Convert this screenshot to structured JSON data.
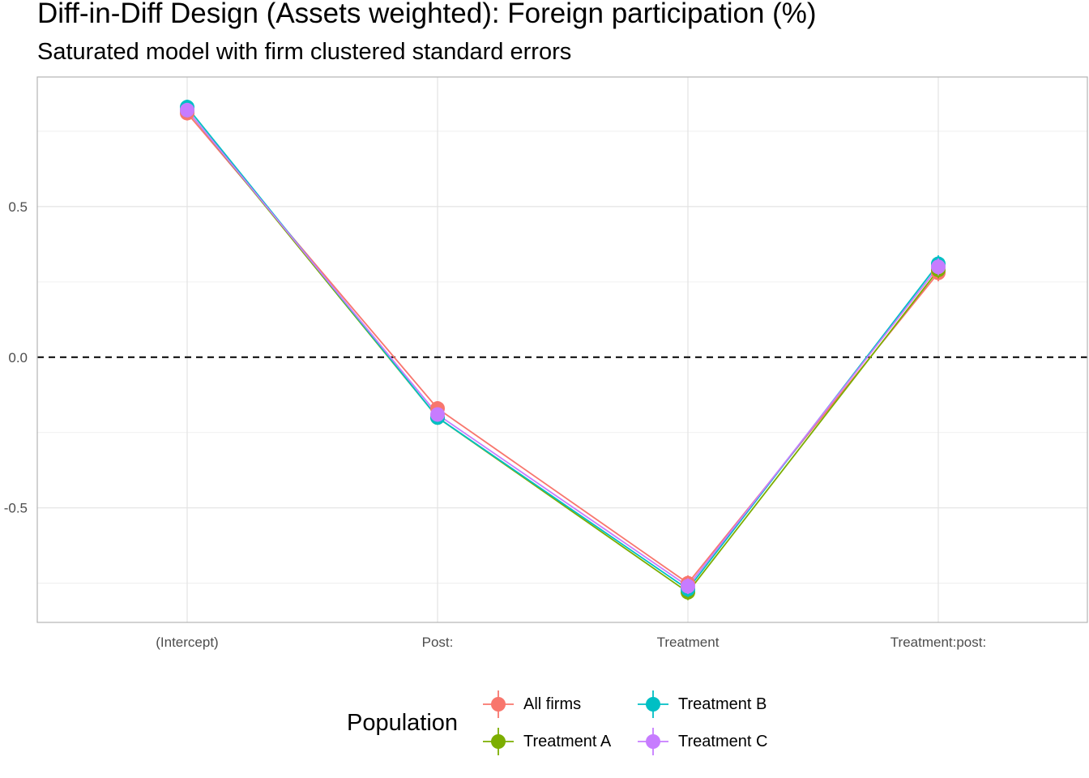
{
  "title": "Diff-in-Diff Design (Assets weighted): Foreign participation (%)",
  "subtitle": "Saturated model with firm clustered standard errors",
  "legend": {
    "title": "Population"
  },
  "chart_data": {
    "type": "line",
    "title": "Diff-in-Diff Design (Assets weighted): Foreign participation (%)",
    "subtitle": "Saturated model with firm clustered standard errors",
    "xlabel": "",
    "ylabel": "",
    "categories": [
      "(Intercept)",
      "Post:",
      "Treatment",
      "Treatment:post:"
    ],
    "ylim": [
      -0.88,
      0.93
    ],
    "yticks": [
      -0.5,
      0.0,
      0.5
    ],
    "ytick_labels": [
      "-0.5",
      "0.0",
      "0.5"
    ],
    "reference_line": {
      "y": 0,
      "style": "dashed"
    },
    "grid": true,
    "legend_position": "bottom",
    "series": [
      {
        "name": "All firms",
        "color": "#F8766D",
        "values": [
          0.81,
          -0.17,
          -0.75,
          0.28
        ],
        "error": [
          0.008,
          0.008,
          0.01,
          0.012
        ]
      },
      {
        "name": "Treatment A",
        "color": "#7CAE00",
        "values": [
          0.82,
          -0.2,
          -0.78,
          0.29
        ],
        "error": [
          0.008,
          0.008,
          0.01,
          0.012
        ]
      },
      {
        "name": "Treatment B",
        "color": "#00BFC4",
        "values": [
          0.83,
          -0.2,
          -0.77,
          0.31
        ],
        "error": [
          0.008,
          0.008,
          0.01,
          0.012
        ]
      },
      {
        "name": "Treatment C",
        "color": "#C77CFF",
        "values": [
          0.82,
          -0.19,
          -0.76,
          0.3
        ],
        "error": [
          0.008,
          0.008,
          0.01,
          0.012
        ]
      }
    ]
  }
}
